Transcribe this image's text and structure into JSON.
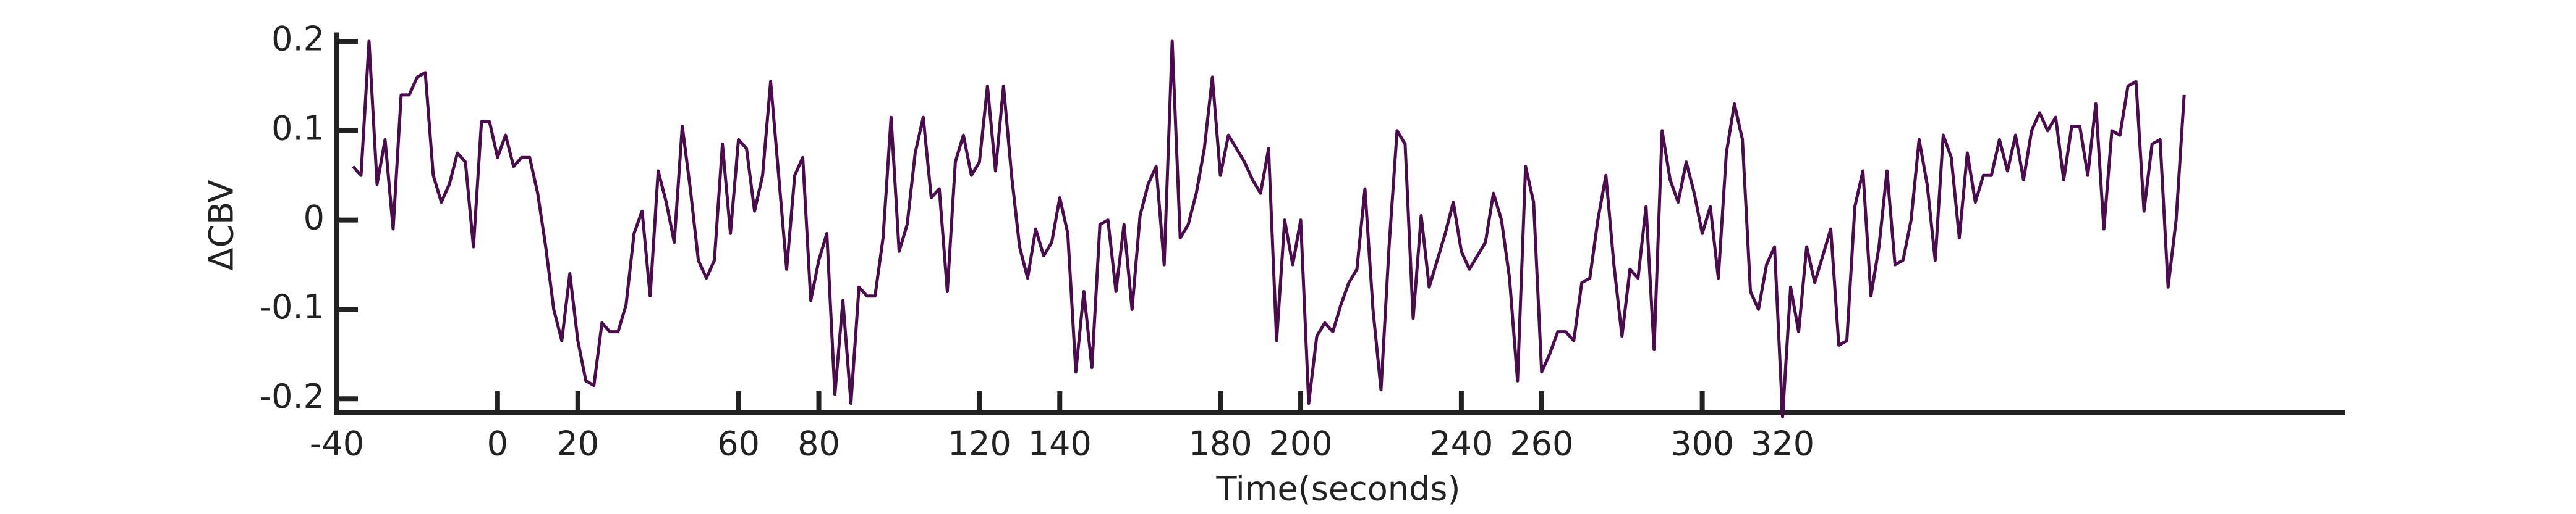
{
  "chart_data": {
    "type": "line",
    "x_label": "Time(seconds)",
    "y_label": "ΔCBV",
    "x": [
      -36,
      -34,
      -32,
      -30,
      -28,
      -26,
      -24,
      -22,
      -20,
      -18,
      -16,
      -14,
      -12,
      -10,
      -8,
      -6,
      -4,
      -2,
      0,
      2,
      4,
      6,
      8,
      10,
      12,
      14,
      16,
      18,
      20,
      22,
      24,
      26,
      28,
      30,
      32,
      34,
      36,
      38,
      40,
      42,
      44,
      46,
      48,
      50,
      52,
      54,
      56,
      58,
      60,
      62,
      64,
      66,
      68,
      70,
      72,
      74,
      76,
      78,
      80,
      82,
      84,
      86,
      88,
      90,
      92,
      94,
      96,
      98,
      100,
      102,
      104,
      106,
      108,
      110,
      112,
      114,
      116,
      118,
      120,
      122,
      124,
      126,
      128,
      130,
      132,
      134,
      136,
      138,
      140,
      142,
      144,
      146,
      148,
      150,
      152,
      154,
      156,
      158,
      160,
      162,
      164,
      166,
      168,
      170,
      172,
      174,
      176,
      178,
      180,
      182,
      184,
      186,
      188,
      190,
      192,
      194,
      196,
      198,
      200,
      202,
      204,
      206,
      208,
      210,
      212,
      214,
      216,
      218,
      220,
      222,
      224,
      226,
      228,
      230,
      232,
      234,
      236,
      238,
      240,
      242,
      244,
      246,
      248,
      250,
      252,
      254,
      256,
      258,
      260,
      262,
      264,
      266,
      268,
      270,
      272,
      274,
      276,
      278,
      280,
      282,
      284,
      286,
      288,
      290,
      292,
      294,
      296,
      298,
      300,
      302,
      304,
      306,
      308,
      310,
      312,
      314,
      316,
      318,
      320,
      322,
      324,
      326,
      328,
      330,
      332,
      334,
      336,
      338,
      340,
      342,
      344,
      346,
      348,
      350,
      352,
      354,
      356,
      358,
      360,
      362,
      364,
      366,
      368,
      370,
      372,
      374,
      376,
      378,
      380,
      382,
      384,
      386,
      388,
      390,
      392,
      394,
      396,
      398,
      400,
      402,
      404,
      406,
      408,
      410,
      412,
      414,
      416,
      418,
      420
    ],
    "series": [
      {
        "color": "#4b0c4e",
        "values": [
          0.06,
          0.05,
          0.2,
          0.04,
          0.09,
          -0.01,
          0.14,
          0.14,
          0.16,
          0.165,
          0.05,
          0.02,
          0.04,
          0.075,
          0.065,
          -0.03,
          0.11,
          0.11,
          0.07,
          0.095,
          0.06,
          0.07,
          0.07,
          0.03,
          -0.03,
          -0.1,
          -0.135,
          -0.06,
          -0.135,
          -0.18,
          -0.185,
          -0.115,
          -0.125,
          -0.125,
          -0.095,
          -0.015,
          0.01,
          -0.085,
          0.055,
          0.02,
          -0.025,
          0.105,
          0.035,
          -0.045,
          -0.065,
          -0.045,
          0.085,
          -0.015,
          0.09,
          0.08,
          0.01,
          0.05,
          0.155,
          0.05,
          -0.055,
          0.05,
          0.07,
          -0.09,
          -0.045,
          -0.015,
          -0.195,
          -0.09,
          -0.205,
          -0.075,
          -0.085,
          -0.085,
          -0.02,
          0.115,
          -0.035,
          -0.005,
          0.075,
          0.115,
          0.025,
          0.035,
          -0.08,
          0.065,
          0.095,
          0.05,
          0.065,
          0.15,
          0.055,
          0.15,
          0.05,
          -0.03,
          -0.065,
          -0.01,
          -0.04,
          -0.025,
          0.025,
          -0.015,
          -0.17,
          -0.08,
          -0.165,
          -0.005,
          0.0,
          -0.08,
          -0.005,
          -0.1,
          0.005,
          0.04,
          0.06,
          -0.05,
          0.2,
          -0.02,
          -0.005,
          0.03,
          0.08,
          0.16,
          0.05,
          0.095,
          0.08,
          0.065,
          0.045,
          0.03,
          0.08,
          -0.135,
          0.0,
          -0.05,
          0.0,
          -0.205,
          -0.13,
          -0.115,
          -0.125,
          -0.095,
          -0.07,
          -0.055,
          0.035,
          -0.1,
          -0.19,
          -0.03,
          0.1,
          0.085,
          -0.11,
          0.005,
          -0.075,
          -0.045,
          -0.015,
          0.02,
          -0.035,
          -0.055,
          -0.04,
          -0.025,
          0.03,
          0.0,
          -0.065,
          -0.18,
          0.06,
          0.02,
          -0.17,
          -0.15,
          -0.125,
          -0.125,
          -0.135,
          -0.07,
          -0.065,
          0.0,
          0.05,
          -0.05,
          -0.13,
          -0.055,
          -0.065,
          0.015,
          -0.145,
          0.1,
          0.045,
          0.02,
          0.065,
          0.03,
          -0.015,
          0.015,
          -0.065,
          0.075,
          0.13,
          0.09,
          -0.08,
          -0.1,
          -0.05,
          -0.03,
          -0.22,
          -0.075,
          -0.125,
          -0.03,
          -0.07,
          -0.04,
          -0.01,
          -0.14,
          -0.135,
          0.015,
          0.055,
          -0.085,
          -0.03,
          0.055,
          -0.05,
          -0.045,
          0.0,
          0.09,
          0.04,
          -0.045,
          0.095,
          0.07,
          -0.02,
          0.075,
          0.02,
          0.05,
          0.05,
          0.09,
          0.055,
          0.095,
          0.045,
          0.1,
          0.12,
          0.1,
          0.115,
          0.045,
          0.105,
          0.105,
          0.05,
          0.13,
          -0.01,
          0.1,
          0.095,
          0.15,
          0.155,
          0.01,
          0.085,
          0.09,
          -0.075,
          0.0,
          0.14
        ]
      }
    ],
    "xlim": [
      -40,
      460
    ],
    "ylim": [
      -0.215,
      0.21
    ],
    "xticks": [
      -40,
      0,
      20,
      60,
      80,
      120,
      140,
      180,
      200,
      240,
      260,
      300,
      320
    ],
    "yticks": [
      -0.2,
      -0.1,
      0,
      0.1,
      0.2
    ],
    "grid": false
  }
}
